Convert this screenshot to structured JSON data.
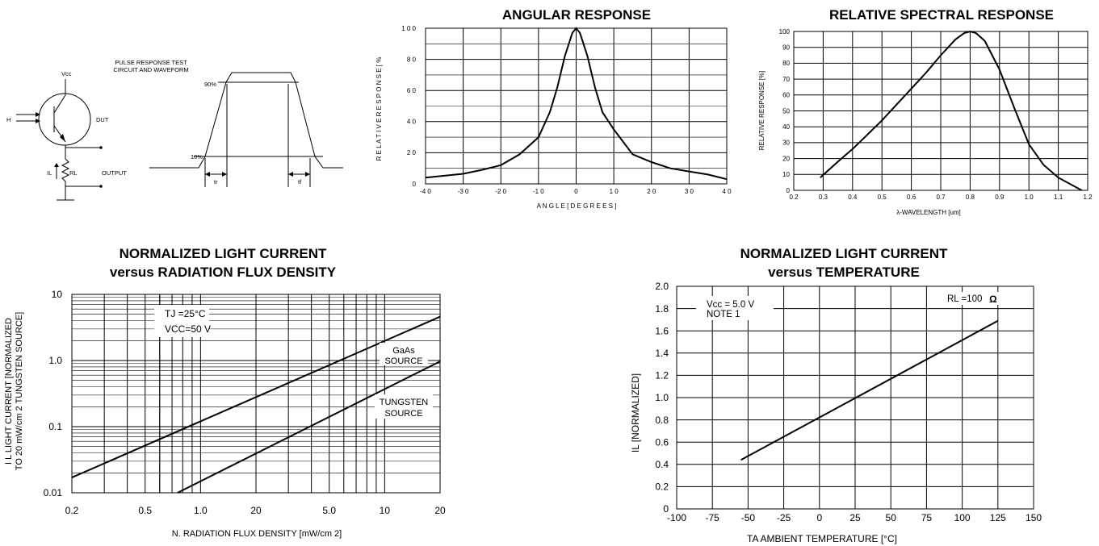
{
  "circuit": {
    "title_line1": "PULSE RESPONSE TEST",
    "title_line2": "CIRCUIT AND WAVEFORM",
    "vcc": "Vcc",
    "h": "H",
    "dut": "DUT",
    "il": "IL",
    "rl": "RL",
    "output": "OUTPUT",
    "p90": "90%",
    "p10": "10%",
    "tr": "tr",
    "tf": "tf"
  },
  "chart_data": [
    {
      "id": "angular",
      "type": "line",
      "title": "ANGULAR RESPONSE",
      "xlabel": "A N G L E  [ D E G R E E S ]",
      "ylabel": "R E L A T I V E   R E S P O N S E  [ %",
      "xlim": [
        -40,
        40
      ],
      "ylim": [
        0,
        100
      ],
      "xticks": [
        "-4 0",
        "-3 0",
        "-2 0",
        "-1 0",
        "0",
        "1 0",
        "2 0",
        "3 0",
        "4 0"
      ],
      "yticks": [
        "0",
        "2 0",
        "4 0",
        "6 0",
        "8 0",
        "1 0 0"
      ],
      "grid": true,
      "series": [
        {
          "x": [
            -40,
            -30,
            -25,
            -20,
            -15,
            -10,
            -7,
            -5,
            -3,
            -1,
            0,
            1,
            3,
            5,
            7,
            10,
            15,
            20,
            25,
            30,
            35,
            40
          ],
          "y": [
            4,
            6.5,
            9,
            12,
            19,
            30,
            46,
            62,
            82,
            97,
            100,
            97,
            82,
            62,
            46,
            35,
            19,
            14,
            10,
            8,
            6,
            3
          ]
        }
      ]
    },
    {
      "id": "spectral",
      "type": "line",
      "title": "RELATIVE SPECTRAL RESPONSE",
      "xlabel": "λ-WAVELENGTH [um]",
      "ylabel": "RELATIVE RESPONSE [%]",
      "xlim": [
        0.2,
        1.2
      ],
      "ylim": [
        0,
        100
      ],
      "xticks": [
        "0.2",
        "0.3",
        "0.4",
        "0.5",
        "0.6",
        "0.7",
        "0.8",
        "0.9",
        "1.0",
        "1.1",
        "1.2"
      ],
      "yticks": [
        "0",
        "10",
        "20",
        "30",
        "40",
        "50",
        "60",
        "70",
        "80",
        "90",
        "100"
      ],
      "grid": true,
      "series": [
        {
          "x": [
            0.29,
            0.35,
            0.4,
            0.45,
            0.5,
            0.55,
            0.6,
            0.65,
            0.7,
            0.75,
            0.78,
            0.8,
            0.82,
            0.85,
            0.9,
            0.95,
            1.0,
            1.05,
            1.1,
            1.15,
            1.18
          ],
          "y": [
            8,
            18,
            26,
            35,
            44,
            54,
            64,
            74,
            85,
            95,
            99,
            100,
            99,
            94,
            76,
            52,
            29,
            16,
            8,
            3,
            0
          ]
        }
      ]
    },
    {
      "id": "flux",
      "type": "line",
      "title": "NORMALIZED LIGHT CURRENT",
      "subtitle": "versus RADIATION FLUX DENSITY",
      "xlabel": "N. RADIATION FLUX DENSITY [mW/cm 2]",
      "ylabel_line1": "I L  LIGHT CURRENT [NORMALIZED",
      "ylabel_line2": "TO 20 mW/cm 2 TUNGSTEN SOURCE]",
      "xscale": "log",
      "yscale": "log",
      "xlim": [
        0.2,
        20
      ],
      "ylim": [
        0.01,
        10
      ],
      "xticks": [
        "0.2",
        "0.5",
        "1.0",
        "20",
        "5.0",
        "10",
        "20"
      ],
      "yticks": [
        "0.01",
        "0.1",
        "1.0",
        "10"
      ],
      "grid": true,
      "annotation_tj": "TJ  =25°C",
      "annotation_vcc": "VCC=50 V",
      "series": [
        {
          "name": "GaAs SOURCE",
          "name_line1": "GaAs",
          "name_line2": "SOURCE",
          "x": [
            0.2,
            20
          ],
          "y": [
            0.017,
            4.6
          ]
        },
        {
          "name": "TUNGSTEN SOURCE",
          "name_line1": "TUNGSTEN",
          "name_line2": "SOURCE",
          "x": [
            0.75,
            20
          ],
          "y": [
            0.01,
            0.97
          ]
        }
      ]
    },
    {
      "id": "temp",
      "type": "line",
      "title": "NORMALIZED LIGHT CURRENT",
      "subtitle": "versus TEMPERATURE",
      "xlabel": "TA  AMBIENT TEMPERATURE [°C]",
      "ylabel": "IL  [NORMALIZED]",
      "xlim": [
        -100,
        150
      ],
      "ylim": [
        0,
        2.0
      ],
      "xticks": [
        "-100",
        "-75",
        "-50",
        "-25",
        "0",
        "25",
        "50",
        "75",
        "100",
        "125",
        "150"
      ],
      "yticks": [
        "0",
        "0.2",
        "0.4",
        "0.6",
        "0.8",
        "1.0",
        "1.2",
        "1.4",
        "1.6",
        "1.8",
        "2.0"
      ],
      "grid": true,
      "annotation_vcc": "Vcc = 5.0 V",
      "annotation_note": "NOTE 1",
      "annotation_rl": "RL  =100",
      "series": [
        {
          "x": [
            -55,
            125
          ],
          "y": [
            0.44,
            1.69
          ]
        }
      ]
    }
  ]
}
